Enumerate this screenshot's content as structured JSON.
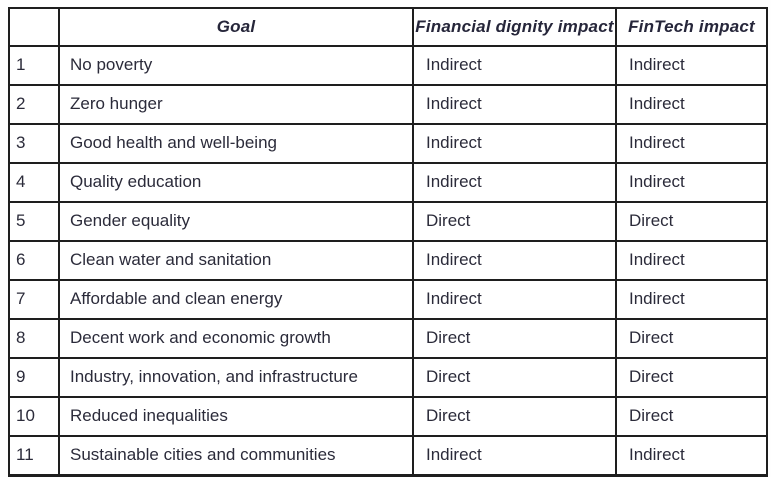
{
  "table": {
    "headers": {
      "num": "",
      "goal": "Goal",
      "financial_dignity": "Financial dignity impact",
      "fintech": "FinTech impact"
    },
    "rows": [
      {
        "num": "1",
        "goal": "No poverty",
        "financial_dignity": "Indirect",
        "fintech": "Indirect"
      },
      {
        "num": "2",
        "goal": "Zero hunger",
        "financial_dignity": "Indirect",
        "fintech": "Indirect"
      },
      {
        "num": "3",
        "goal": "Good health and well-being",
        "financial_dignity": "Indirect",
        "fintech": "Indirect"
      },
      {
        "num": "4",
        "goal": "Quality education",
        "financial_dignity": "Indirect",
        "fintech": "Indirect"
      },
      {
        "num": "5",
        "goal": "Gender equality",
        "financial_dignity": "Direct",
        "fintech": "Direct"
      },
      {
        "num": "6",
        "goal": "Clean water and sanitation",
        "financial_dignity": "Indirect",
        "fintech": "Indirect"
      },
      {
        "num": "7",
        "goal": "Affordable and clean energy",
        "financial_dignity": "Indirect",
        "fintech": "Indirect"
      },
      {
        "num": "8",
        "goal": "Decent work and economic growth",
        "financial_dignity": "Direct",
        "fintech": "Direct"
      },
      {
        "num": "9",
        "goal": "Industry, innovation, and infrastructure",
        "financial_dignity": "Direct",
        "fintech": "Direct"
      },
      {
        "num": "10",
        "goal": "Reduced inequalities",
        "financial_dignity": "Direct",
        "fintech": "Direct"
      },
      {
        "num": "11",
        "goal": "Sustainable cities and communities",
        "financial_dignity": "Indirect",
        "fintech": "Indirect"
      }
    ],
    "colors": {
      "text": "#2b2b3a",
      "border": "#1e1e1e",
      "background": "#ffffff"
    }
  }
}
